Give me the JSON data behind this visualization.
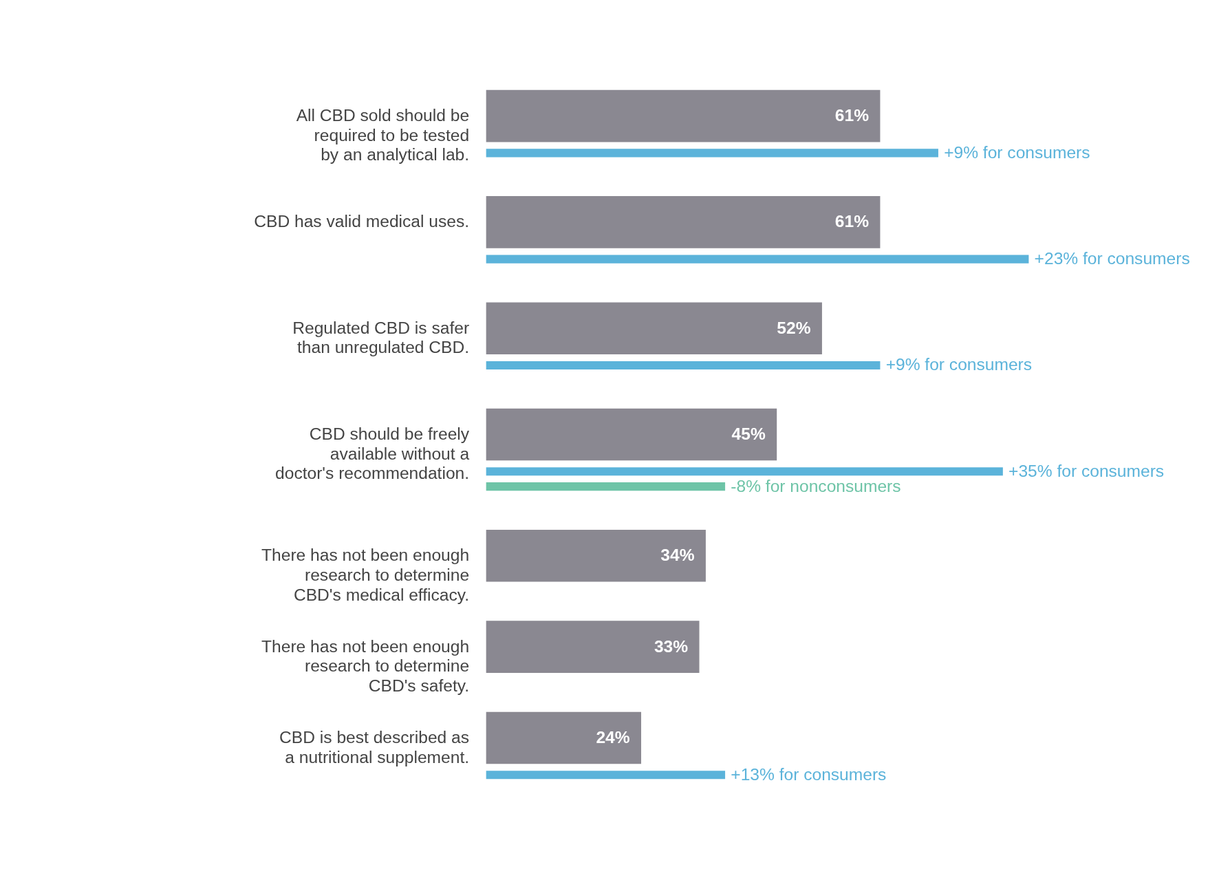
{
  "chart_data": {
    "type": "bar",
    "orientation": "horizontal",
    "categories": [
      "All CBD sold should be\nrequired to be tested\nby an analytical lab.",
      "CBD has valid medical uses.",
      "Regulated CBD is safer\nthan unregulated CBD.",
      "CBD should be freely\navailable without a\ndoctor's recommendation.",
      "There has not been enough\nresearch to determine\nCBD's medical efficacy.",
      "There has not been enough\nresearch to determine\nCBD's safety.",
      "CBD is best described as\na nutritional supplement."
    ],
    "series": [
      {
        "color": "#8a8891",
        "values": [
          61,
          61,
          52,
          45,
          34,
          33,
          24
        ],
        "value_labels": [
          "61%",
          "61%",
          "52%",
          "45%",
          "34%",
          "33%",
          "24%"
        ]
      },
      {
        "color": "#5bb3da",
        "values": [
          70,
          84,
          61,
          80,
          null,
          null,
          37
        ]
      },
      {
        "color": "#6ec4a7",
        "values": [
          null,
          null,
          null,
          37,
          null,
          null,
          null
        ]
      }
    ],
    "annotations": [
      "+9% for consumers",
      "+23% for consumers",
      "+9% for consumers",
      "+35% for consumers",
      "-8% for nonconsumers",
      "+13% for consumers"
    ]
  }
}
